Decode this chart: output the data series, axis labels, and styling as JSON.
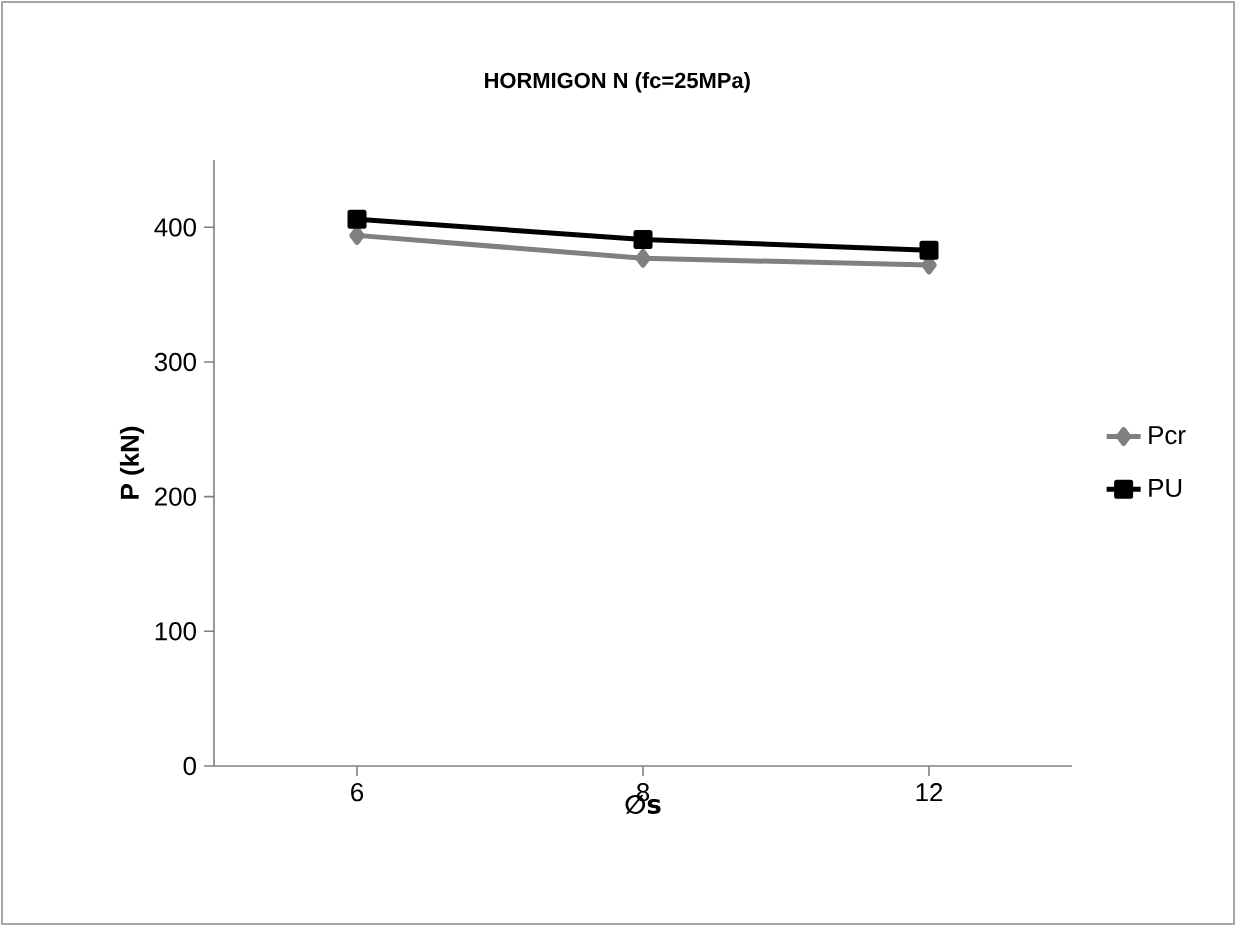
{
  "chart_data": {
    "type": "line",
    "title": "HORMIGON N (fc=25MPa)",
    "xlabel": "∅s",
    "ylabel": "P (kN)",
    "categories": [
      "6",
      "8",
      "12"
    ],
    "series": [
      {
        "name": "Pcr",
        "color": "#808080",
        "marker": "diamond",
        "values": [
          394,
          377,
          372
        ]
      },
      {
        "name": "PU",
        "color": "#000000",
        "marker": "square",
        "values": [
          406,
          391,
          383
        ]
      }
    ],
    "ylim": [
      0,
      450
    ],
    "yticks": [
      0,
      100,
      200,
      300,
      400
    ],
    "grid": false,
    "legend": "right",
    "line_style": "solid"
  }
}
